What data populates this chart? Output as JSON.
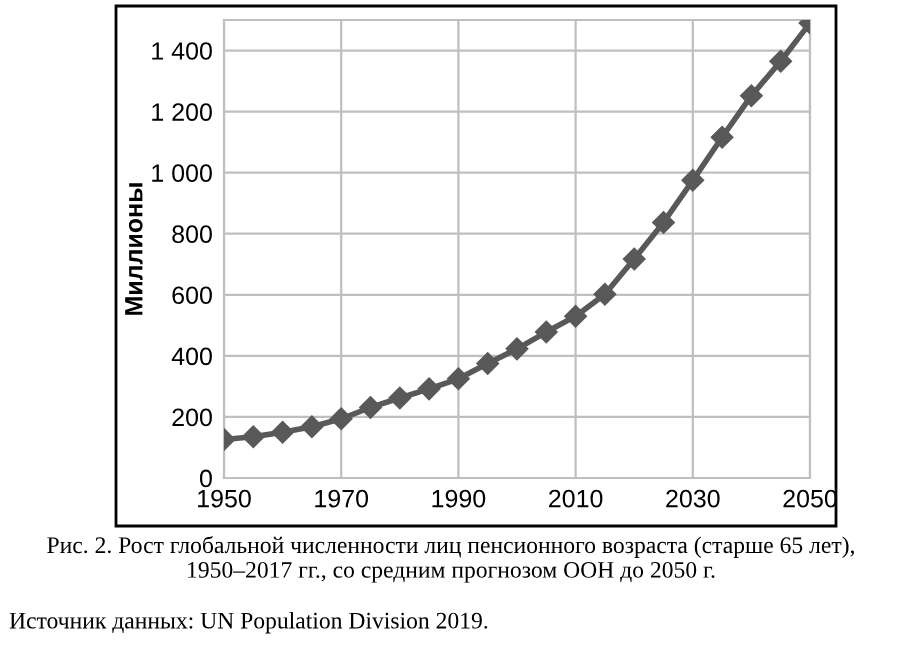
{
  "chart_data": {
    "type": "line",
    "title": "Рис. 2. Рост глобальной численности лиц пенсионного возраста (старше 65 лет), 1950–2017 гг., со средним прогнозом ООН до 2050 г.",
    "ylabel": "Миллионы",
    "annotations": [
      "Источник данных: UN Population Division 2019."
    ],
    "x": [
      1950,
      1955,
      1960,
      1965,
      1970,
      1975,
      1980,
      1985,
      1990,
      1995,
      2000,
      2005,
      2010,
      2015,
      2020,
      2025,
      2030,
      2035,
      2040,
      2045,
      2050
    ],
    "series": [
      {
        "color": "#595959",
        "values": [
          126,
          135,
          150,
          168,
          194,
          231,
          262,
          292,
          325,
          375,
          423,
          478,
          530,
          602,
          717,
          837,
          975,
          1116,
          1252,
          1365,
          1490
        ]
      }
    ],
    "xlim": [
      1950,
      2050
    ],
    "xticks": [
      1950,
      1970,
      1990,
      2010,
      2030,
      2050
    ],
    "ylim": [
      0,
      1500
    ],
    "yticks": [
      0,
      200,
      400,
      600,
      800,
      {
        "value": 1000,
        "label": "1 000"
      },
      {
        "value": 1200,
        "label": "1 200"
      },
      {
        "value": 1400,
        "label": "1 400"
      }
    ],
    "grid": true,
    "legend": false,
    "marker": "diamond",
    "line_style": "solid"
  }
}
